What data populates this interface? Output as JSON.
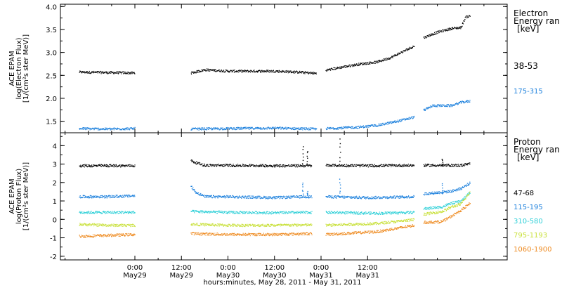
{
  "chart_data": [
    {
      "type": "scatter",
      "ylabel_lines": [
        "ACE EPAM",
        "log(Electron Flux)",
        "[1/(cm²s ster MeV)]"
      ],
      "y_ticks": [
        "1.5",
        "2.0",
        "2.5",
        "3.0",
        "3.5",
        "4.0"
      ],
      "ylim": [
        1.25,
        4.05
      ],
      "legend_title_lines": [
        "Electron",
        "Energy ran",
        "[keV]"
      ],
      "series": [
        {
          "name": "38-53",
          "color": "#000000",
          "segments": [
            {
              "x": [
                -0.6,
                -0.3,
                0.0
              ],
              "y": [
                2.58,
                2.57,
                2.56
              ]
            },
            {
              "x": [
                0.6,
                0.75,
                1.0,
                1.1,
                1.25,
                1.5,
                1.75,
                1.95
              ],
              "y": [
                2.56,
                2.63,
                2.6,
                2.6,
                2.6,
                2.6,
                2.58,
                2.55
              ]
            },
            {
              "x": [
                2.05,
                2.2,
                2.4,
                2.6,
                2.75,
                2.85,
                2.95,
                3.0
              ],
              "y": [
                2.62,
                2.68,
                2.75,
                2.8,
                2.9,
                3.0,
                3.1,
                3.15
              ]
            },
            {
              "x": [
                3.1,
                3.25,
                3.4,
                3.5,
                3.55,
                3.6
              ],
              "y": [
                3.33,
                3.45,
                3.53,
                3.55,
                3.78,
                3.8
              ]
            }
          ],
          "spikes": []
        },
        {
          "name": "175-315",
          "color": "#1a7fdc",
          "segments": [
            {
              "x": [
                -0.6,
                -0.3,
                0.0
              ],
              "y": [
                1.35,
                1.34,
                1.35
              ]
            },
            {
              "x": [
                0.6,
                1.0,
                1.5,
                1.95
              ],
              "y": [
                1.34,
                1.35,
                1.36,
                1.34
              ]
            },
            {
              "x": [
                2.05,
                2.4,
                2.6,
                2.8,
                3.0
              ],
              "y": [
                1.35,
                1.38,
                1.42,
                1.5,
                1.6
              ]
            },
            {
              "x": [
                3.1,
                3.2,
                3.4,
                3.5,
                3.6
              ],
              "y": [
                1.75,
                1.85,
                1.85,
                1.92,
                1.95
              ]
            }
          ],
          "spikes": []
        }
      ]
    },
    {
      "type": "scatter",
      "ylabel_lines": [
        "ACE EPAM",
        "log(Proton Flux)",
        "[1/(cm²s ster MeV)]"
      ],
      "y_ticks": [
        "-2",
        "-1",
        "0",
        "1",
        "2",
        "3",
        "4"
      ],
      "ylim": [
        -2.2,
        4.7
      ],
      "legend_title_lines": [
        "Proton",
        "Energy ran",
        "[keV]"
      ],
      "series": [
        {
          "name": "47-68",
          "color": "#000000",
          "segments": [
            {
              "x": [
                -0.6,
                -0.3,
                0.0
              ],
              "y": [
                2.93,
                2.93,
                2.93
              ]
            },
            {
              "x": [
                0.6,
                0.65,
                0.75,
                1.0,
                1.5,
                1.8,
                1.9
              ],
              "y": [
                3.2,
                3.1,
                2.95,
                2.95,
                2.93,
                2.93,
                2.93
              ]
            },
            {
              "x": [
                2.05,
                2.5,
                3.0
              ],
              "y": [
                2.95,
                2.93,
                2.95
              ]
            },
            {
              "x": [
                3.1,
                3.5,
                3.6
              ],
              "y": [
                2.95,
                2.95,
                3.05
              ]
            }
          ],
          "spikes": [
            {
              "x": 1.8,
              "y": 3.95
            },
            {
              "x": 1.85,
              "y": 3.75
            },
            {
              "x": 2.2,
              "y": 4.4
            },
            {
              "x": 3.3,
              "y": 3.3
            }
          ]
        },
        {
          "name": "115-195",
          "color": "#1a7fdc",
          "segments": [
            {
              "x": [
                -0.6,
                -0.3,
                0.0
              ],
              "y": [
                1.25,
                1.25,
                1.3
              ]
            },
            {
              "x": [
                0.6,
                0.65,
                0.75,
                1.0,
                1.5,
                1.8,
                1.9
              ],
              "y": [
                1.8,
                1.5,
                1.25,
                1.25,
                1.2,
                1.25,
                1.25
              ]
            },
            {
              "x": [
                2.05,
                2.5,
                3.0
              ],
              "y": [
                1.25,
                1.2,
                1.25
              ]
            },
            {
              "x": [
                3.1,
                3.3,
                3.4,
                3.5,
                3.6
              ],
              "y": [
                1.4,
                1.5,
                1.55,
                1.7,
                2.0
              ]
            }
          ],
          "spikes": [
            {
              "x": 1.8,
              "y": 2.0
            },
            {
              "x": 1.85,
              "y": 1.5
            },
            {
              "x": 2.2,
              "y": 2.2
            },
            {
              "x": 3.3,
              "y": 2.0
            }
          ]
        },
        {
          "name": "310-580",
          "color": "#30d0d8",
          "segments": [
            {
              "x": [
                -0.6,
                -0.3,
                0.0
              ],
              "y": [
                0.4,
                0.4,
                0.4
              ]
            },
            {
              "x": [
                0.6,
                1.0,
                1.5,
                1.9
              ],
              "y": [
                0.45,
                0.4,
                0.38,
                0.4
              ]
            },
            {
              "x": [
                2.05,
                2.6,
                3.0
              ],
              "y": [
                0.4,
                0.35,
                0.4
              ]
            },
            {
              "x": [
                3.1,
                3.3,
                3.4,
                3.5,
                3.6
              ],
              "y": [
                0.6,
                0.7,
                0.9,
                1.0,
                1.5
              ]
            }
          ],
          "spikes": []
        },
        {
          "name": "795-1193",
          "color": "#c8e038",
          "segments": [
            {
              "x": [
                -0.6,
                -0.3,
                0.0
              ],
              "y": [
                -0.25,
                -0.3,
                -0.3
              ]
            },
            {
              "x": [
                0.6,
                1.0,
                1.5,
                1.9
              ],
              "y": [
                -0.25,
                -0.3,
                -0.3,
                -0.28
              ]
            },
            {
              "x": [
                2.05,
                2.6,
                3.0
              ],
              "y": [
                -0.3,
                -0.2,
                0.0
              ]
            },
            {
              "x": [
                3.1,
                3.3,
                3.4,
                3.5,
                3.6
              ],
              "y": [
                0.3,
                0.45,
                0.7,
                0.85,
                1.5
              ]
            }
          ],
          "spikes": []
        },
        {
          "name": "1060-1900",
          "color": "#ee8a20",
          "segments": [
            {
              "x": [
                -0.6,
                -0.3,
                0.0
              ],
              "y": [
                -0.9,
                -0.85,
                -0.8
              ]
            },
            {
              "x": [
                0.6,
                1.0,
                1.5,
                1.9
              ],
              "y": [
                -0.75,
                -0.8,
                -0.8,
                -0.75
              ]
            },
            {
              "x": [
                2.05,
                2.6,
                3.0
              ],
              "y": [
                -0.8,
                -0.65,
                -0.3
              ]
            },
            {
              "x": [
                3.1,
                3.3,
                3.4,
                3.5,
                3.6
              ],
              "y": [
                -0.15,
                -0.1,
                0.2,
                0.5,
                0.9
              ]
            }
          ],
          "spikes": []
        }
      ]
    }
  ],
  "x_axis": {
    "xlim_days": [
      -0.8,
      4.0
    ],
    "ticks": [
      {
        "x": 0.0,
        "time": "0:00",
        "date": "May29"
      },
      {
        "x": 0.5,
        "time": "12:00",
        "date": "May29"
      },
      {
        "x": 1.0,
        "time": "0:00",
        "date": "May30"
      },
      {
        "x": 1.5,
        "time": "12:00",
        "date": "May30"
      },
      {
        "x": 2.0,
        "time": "0:00",
        "date": "May31"
      },
      {
        "x": 2.5,
        "time": "12:00",
        "date": "May31"
      }
    ],
    "xlabel": "hours:minutes, May 28, 2011 - May 31, 2011"
  }
}
